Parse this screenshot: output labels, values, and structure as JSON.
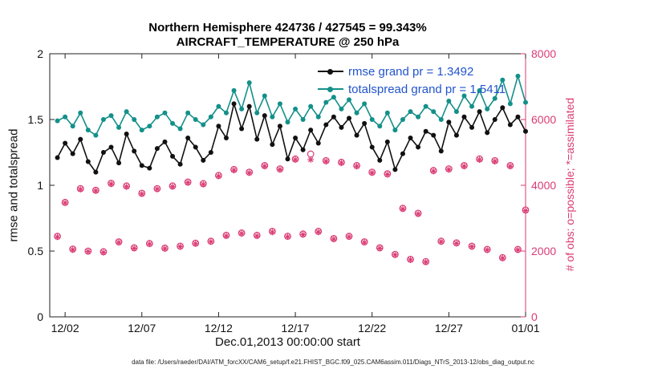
{
  "page": {
    "footer": "data file: /Users/raeder/DAI/ATM_forcXX/CAM6_setup/f.e21.FHIST_BGC.f09_025.CAM6assim.011/Diags_NTrS_2013-12/obs_diag_output.nc"
  },
  "chart_data": {
    "type": "line",
    "title": "Northern Hemisphere 424736 / 427545 = 99.343%",
    "subtitle": "AIRCRAFT_TEMPERATURE @ 250 hPa",
    "xlabel": "Dec.01,2013 00:00:00 start",
    "ylabel_left": "rmse and totalspread",
    "ylabel_right": "# of obs: o=possible; *=assimilated",
    "grid": "off",
    "legend_position": "top-center-inside",
    "xlim": [
      1,
      32
    ],
    "left_ylim": [
      0,
      2
    ],
    "right_ylim": [
      0,
      8000
    ],
    "x_tick_values": [
      2,
      7,
      12,
      17,
      22,
      27,
      32
    ],
    "x_tick_labels": [
      "12/02",
      "12/07",
      "12/12",
      "12/17",
      "12/22",
      "12/27",
      "01/01"
    ],
    "left_ytick_values": [
      0,
      0.5,
      1,
      1.5,
      2
    ],
    "left_ytick_labels": [
      "0",
      "0.5",
      "1",
      "1.5",
      "2"
    ],
    "right_ytick_values": [
      0,
      2000,
      4000,
      6000,
      8000
    ],
    "right_ytick_labels": [
      "0",
      "2000",
      "4000",
      "6000",
      "8000"
    ],
    "colors": {
      "rmse": "#111111",
      "totalspread": "#14908a",
      "obs": "#da3b74",
      "legend_text": "#2254cc",
      "axis": "#222222"
    },
    "x": [
      1.5,
      2,
      2.5,
      3,
      3.5,
      4,
      4.5,
      5,
      5.5,
      6,
      6.5,
      7,
      7.5,
      8,
      8.5,
      9,
      9.5,
      10,
      10.5,
      11,
      11.5,
      12,
      12.5,
      13,
      13.5,
      14,
      14.5,
      15,
      15.5,
      16,
      16.5,
      17,
      17.5,
      18,
      18.5,
      19,
      19.5,
      20,
      20.5,
      21,
      21.5,
      22,
      22.5,
      23,
      23.5,
      24,
      24.5,
      25,
      25.5,
      26,
      26.5,
      27,
      27.5,
      28,
      28.5,
      29,
      29.5,
      30,
      30.5,
      31,
      31.5,
      32
    ],
    "series": [
      {
        "name": "rmse",
        "axis": "left",
        "style": "line+marker",
        "marker": "filled-circle",
        "color": "#111111",
        "values": [
          1.21,
          1.32,
          1.24,
          1.35,
          1.18,
          1.1,
          1.25,
          1.29,
          1.17,
          1.39,
          1.26,
          1.15,
          1.13,
          1.28,
          1.33,
          1.22,
          1.16,
          1.36,
          1.29,
          1.19,
          1.25,
          1.45,
          1.36,
          1.62,
          1.43,
          1.6,
          1.35,
          1.53,
          1.31,
          1.45,
          1.2,
          1.36,
          1.27,
          1.42,
          1.32,
          1.46,
          1.52,
          1.44,
          1.51,
          1.38,
          1.47,
          1.29,
          1.19,
          1.33,
          1.12,
          1.24,
          1.36,
          1.29,
          1.41,
          1.38,
          1.26,
          1.48,
          1.38,
          1.52,
          1.44,
          1.56,
          1.4,
          1.5,
          1.59,
          1.46,
          1.52,
          1.41
        ]
      },
      {
        "name": "totalspread",
        "axis": "left",
        "style": "line+marker",
        "marker": "filled-circle",
        "color": "#14908a",
        "values": [
          1.49,
          1.52,
          1.45,
          1.55,
          1.42,
          1.38,
          1.5,
          1.53,
          1.44,
          1.56,
          1.5,
          1.42,
          1.45,
          1.52,
          1.55,
          1.47,
          1.43,
          1.55,
          1.5,
          1.46,
          1.52,
          1.6,
          1.55,
          1.72,
          1.58,
          1.78,
          1.55,
          1.68,
          1.52,
          1.62,
          1.48,
          1.58,
          1.5,
          1.6,
          1.52,
          1.63,
          1.67,
          1.58,
          1.65,
          1.55,
          1.62,
          1.5,
          1.45,
          1.55,
          1.42,
          1.5,
          1.56,
          1.52,
          1.6,
          1.56,
          1.5,
          1.64,
          1.56,
          1.68,
          1.6,
          1.72,
          1.58,
          1.66,
          1.8,
          1.62,
          1.83,
          1.63
        ]
      },
      {
        "name": "obs_possible",
        "axis": "right",
        "style": "scatter",
        "marker": "open-circle",
        "color": "#da3b74",
        "values": [
          2450,
          3480,
          2060,
          3900,
          2000,
          3850,
          1980,
          4060,
          2280,
          3980,
          2100,
          3760,
          2230,
          3900,
          2090,
          3980,
          2150,
          4100,
          2240,
          4050,
          2300,
          4300,
          2480,
          4480,
          2550,
          4400,
          2480,
          4600,
          2600,
          4500,
          2450,
          4800,
          2520,
          4950,
          2600,
          4750,
          2380,
          4700,
          2450,
          4600,
          2280,
          4400,
          2100,
          4350,
          1900,
          3300,
          1750,
          3150,
          1680,
          4450,
          2300,
          4500,
          2250,
          4600,
          2150,
          4800,
          2050,
          4750,
          1800,
          4600,
          2050,
          3250
        ]
      },
      {
        "name": "obs_assimilated",
        "axis": "right",
        "style": "scatter",
        "marker": "asterisk",
        "color": "#da3b74",
        "values": [
          2430,
          3465,
          2040,
          3880,
          1985,
          3835,
          1960,
          4040,
          2265,
          3960,
          2085,
          3740,
          2215,
          3885,
          2075,
          3960,
          2135,
          4080,
          2225,
          4030,
          2285,
          4280,
          2460,
          4460,
          2535,
          4380,
          2460,
          4580,
          2580,
          4480,
          2435,
          4780,
          2500,
          4780,
          2580,
          4730,
          2365,
          4680,
          2435,
          4580,
          2265,
          4380,
          2085,
          4330,
          1885,
          3280,
          1735,
          3130,
          1665,
          4430,
          2285,
          4480,
          2235,
          4580,
          2135,
          4780,
          2035,
          4730,
          1785,
          4580,
          2035,
          3230
        ]
      }
    ],
    "legend": [
      {
        "label": "rmse grand pr = 1.3492",
        "marker_color": "#111111"
      },
      {
        "label": "totalspread grand pr = 1.5411",
        "marker_color": "#14908a"
      }
    ],
    "legend_text_color": "#2254cc"
  }
}
